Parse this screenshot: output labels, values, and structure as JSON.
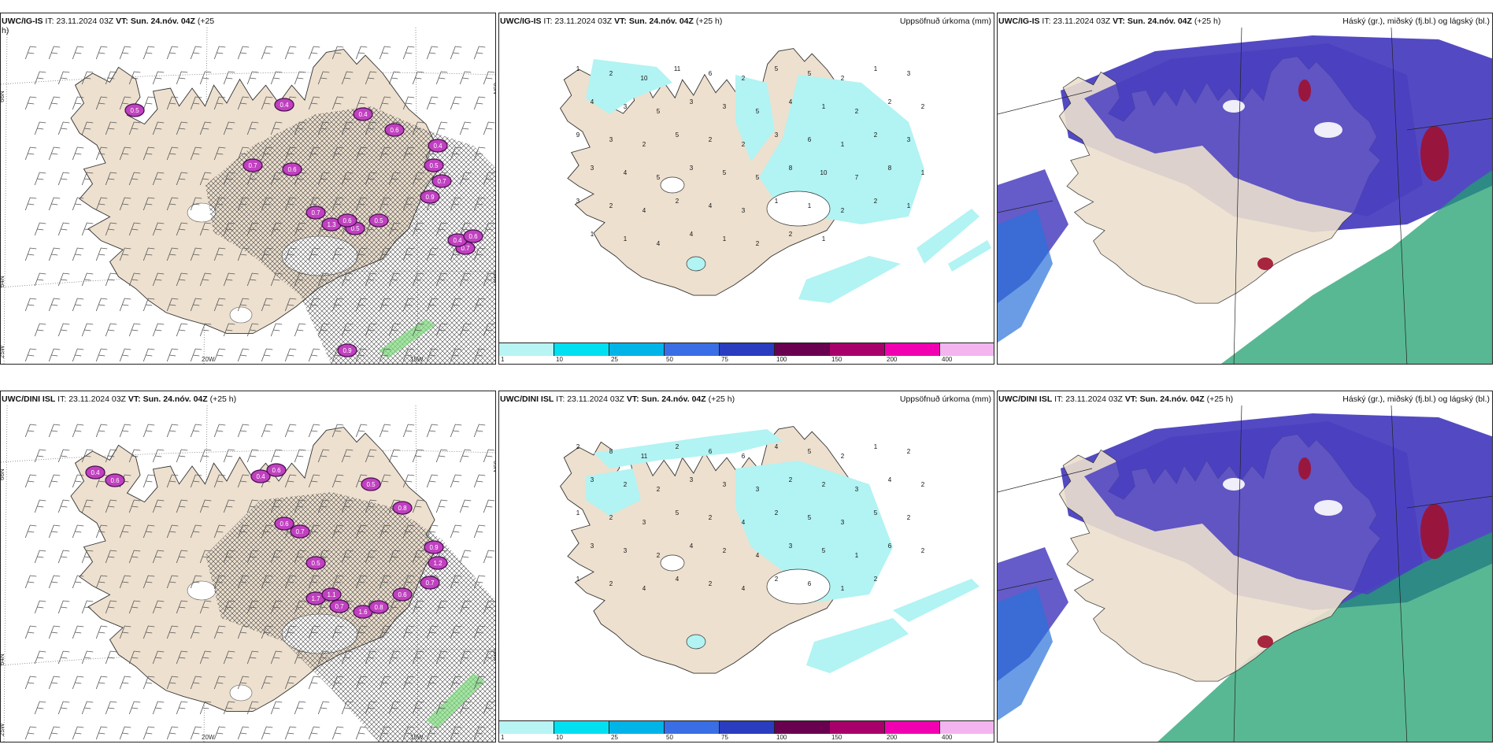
{
  "panels": [
    {
      "id": "p1",
      "model": "UWC/IG-IS",
      "it_label": "IT:",
      "it": "23.11.2024 03Z",
      "vt_label": "VT:",
      "vt": "Sun. 24.nóv. 04Z",
      "lead": "(+25",
      "lead2": "h)",
      "right_title": "",
      "type": "wind",
      "lat_labels": [
        "66N",
        "64N",
        "25W"
      ],
      "lat_labels_right": [
        "65N",
        "64N"
      ],
      "lon_labels": [
        "20W",
        "15W"
      ],
      "cell_labels": [
        "0.5",
        "0.4",
        "0.4",
        "0.6",
        "0.4",
        "0.5",
        "0.7",
        "0.9",
        "0.7",
        "1.3",
        "0.5",
        "0.5",
        "0.6",
        "0.7",
        "0.6",
        "0.7",
        "0.4",
        "0.6",
        "0.9"
      ]
    },
    {
      "id": "p2",
      "model": "UWC/IG-IS",
      "it_label": "IT:",
      "it": "23.11.2024 03Z",
      "vt_label": "VT:",
      "vt": "Sun. 24.nóv. 04Z",
      "lead": "(+25 h)",
      "right_title": "Uppsöfnuð úrkoma (mm)",
      "type": "precip",
      "values": [
        "1",
        "2",
        "10",
        "11",
        "6",
        "2",
        "5",
        "5",
        "2",
        "1",
        "3",
        "4",
        "3",
        "5",
        "3",
        "3",
        "5",
        "4",
        "1",
        "2",
        "2",
        "2",
        "9",
        "3",
        "2",
        "5",
        "2",
        "2",
        "3",
        "6",
        "1",
        "2",
        "3",
        "3",
        "4",
        "5",
        "3",
        "5",
        "5",
        "8",
        "10",
        "7",
        "8",
        "1",
        "3",
        "2",
        "4",
        "2",
        "4",
        "3",
        "1",
        "1",
        "2",
        "2",
        "1",
        "1",
        "1",
        "4",
        "4",
        "1",
        "2",
        "2",
        "1"
      ]
    },
    {
      "id": "p3",
      "model": "UWC/IG-IS",
      "it_label": "IT:",
      "it": "23.11.2024 03Z",
      "vt_label": "VT:",
      "vt": "Sun. 24.nóv. 04Z",
      "lead": "(+25 h)",
      "right_title": "Háský (gr.), miðský (fj.bl.) og lágský (bl.)",
      "type": "cloud"
    },
    {
      "id": "p4",
      "model": "UWC/DINI ISL",
      "it_label": "IT:",
      "it": "23.11.2024 03Z",
      "vt_label": "VT:",
      "vt": "Sun. 24.nóv. 04Z",
      "lead": "(+25 h)",
      "right_title": "",
      "type": "wind",
      "lat_labels": [
        "66N",
        "64N",
        "25W"
      ],
      "lat_labels_right": [
        "65N",
        "64N"
      ],
      "lon_labels": [
        "20W",
        "15W"
      ],
      "cell_labels": [
        "0.4",
        "0.6",
        "0.4",
        "0.6",
        "0.5",
        "0.8",
        "0.6",
        "0.7",
        "0.5",
        "0.9",
        "1.2",
        "0.7",
        "1.7",
        "0.7",
        "1.6",
        "0.8",
        "0.6",
        "1.1"
      ]
    },
    {
      "id": "p5",
      "model": "UWC/DINI ISL",
      "it_label": "IT:",
      "it": "23.11.2024 03Z",
      "vt_label": "VT:",
      "vt": "Sun. 24.nóv. 04Z",
      "lead": "(+25 h)",
      "right_title": "Uppsöfnuð úrkoma (mm)",
      "type": "precip",
      "values": [
        "2",
        "8",
        "11",
        "2",
        "6",
        "6",
        "4",
        "5",
        "2",
        "1",
        "2",
        "3",
        "2",
        "2",
        "3",
        "3",
        "3",
        "2",
        "2",
        "3",
        "4",
        "2",
        "1",
        "2",
        "3",
        "5",
        "2",
        "4",
        "2",
        "5",
        "3",
        "5",
        "2",
        "3",
        "3",
        "2",
        "4",
        "2",
        "4",
        "3",
        "5",
        "1",
        "6",
        "2",
        "1",
        "2",
        "4",
        "4",
        "2",
        "4",
        "2",
        "6",
        "1",
        "2"
      ]
    },
    {
      "id": "p6",
      "model": "UWC/DINI ISL",
      "it_label": "IT:",
      "it": "23.11.2024 03Z",
      "vt_label": "VT:",
      "vt": "Sun. 24.nóv. 04Z",
      "lead": "(+25 h)",
      "right_title": "Háský (gr.), miðský (fj.bl.) og lágský (bl.)",
      "type": "cloud"
    }
  ],
  "colorbar": {
    "ticks": [
      "1",
      "10",
      "25",
      "50",
      "75",
      "100",
      "150",
      "200",
      "400"
    ],
    "colors": [
      "#b8f4f4",
      "#00e0f0",
      "#00b4e8",
      "#3a6ee6",
      "#2a3cc0",
      "#6a0050",
      "#a8006a",
      "#f000b0",
      "#f4b4f0"
    ]
  },
  "colors": {
    "land": "#ede0cf",
    "precip": "#b2f3f3",
    "highcloud_purple": "#4a40c0",
    "mid_blue": "#2a72d8",
    "low_green": "#20a070",
    "red_cloud": "#a01030",
    "hatch": "#333333",
    "wind_cell": "#c040c0"
  }
}
